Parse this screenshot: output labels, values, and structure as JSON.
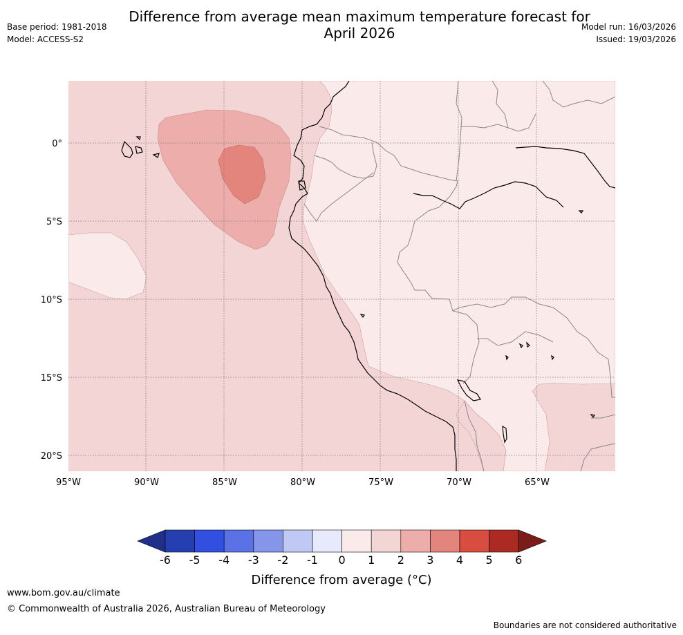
{
  "header": {
    "title_line1": "Difference from average mean maximum temperature forecast for",
    "title_line2": "April 2026",
    "base_period": "Base period: 1981-2018",
    "model": "Model: ACCESS-S2",
    "model_run": "Model run: 16/03/2026",
    "issued": "Issued: 19/03/2026"
  },
  "map": {
    "lon_labels": [
      "95°W",
      "90°W",
      "85°W",
      "80°W",
      "75°W",
      "70°W",
      "65°W"
    ],
    "lat_labels": [
      "0°",
      "5°S",
      "10°S",
      "15°S",
      "20°S"
    ],
    "extent": {
      "lon_min": -95,
      "lon_max": -60,
      "lat_min": -21,
      "lat_max": 4
    }
  },
  "colorbar": {
    "ticks": [
      "-6",
      "-5",
      "-4",
      "-3",
      "-2",
      "-1",
      "0",
      "1",
      "2",
      "3",
      "4",
      "5",
      "6"
    ],
    "colors": [
      "#1f2f8a",
      "#263fb0",
      "#3150e0",
      "#5a72e6",
      "#8596ea",
      "#c0c8f4",
      "#e6eafb",
      "#fbeaea",
      "#f4d5d5",
      "#edaeab",
      "#e4857d",
      "#d94d40",
      "#ac2a21",
      "#7a1d18"
    ],
    "label": "Difference from average (°C)"
  },
  "footer": {
    "url": "www.bom.gov.au/climate",
    "copyright": "© Commonwealth of Australia 2026, Australian Bureau of Meteorology",
    "note": "Boundaries are not considered authoritative"
  }
}
